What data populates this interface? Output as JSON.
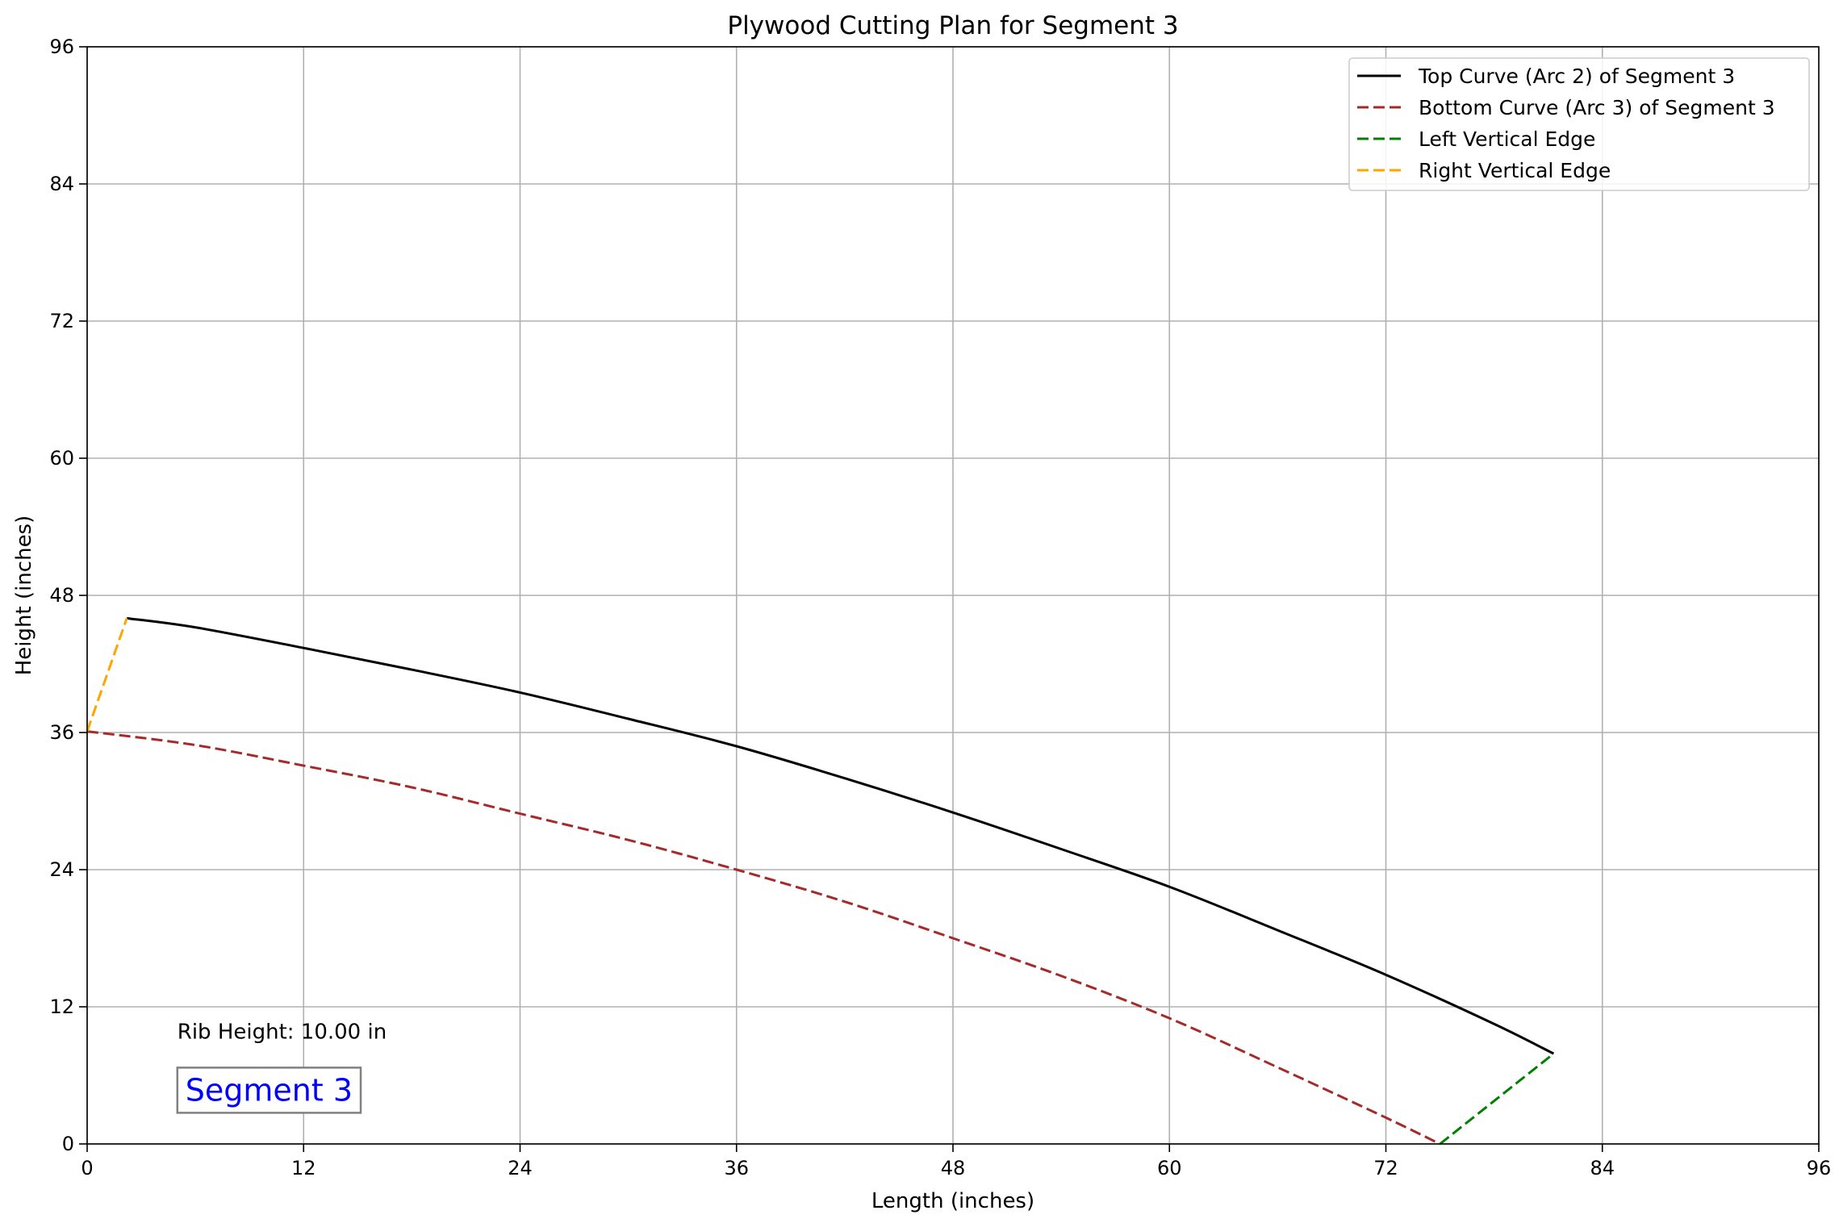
{
  "chart_data": {
    "type": "line",
    "title": "Plywood Cutting Plan for Segment 3",
    "xlabel": "Length (inches)",
    "ylabel": "Height (inches)",
    "xlim": [
      0,
      96
    ],
    "ylim": [
      0,
      96
    ],
    "xticks": [
      0,
      12,
      24,
      36,
      48,
      60,
      72,
      84,
      96
    ],
    "yticks": [
      0,
      12,
      24,
      36,
      48,
      60,
      72,
      84,
      96
    ],
    "grid": true,
    "legend_position": "top-right",
    "series": [
      {
        "name": "Top Curve (Arc 2) of Segment 3",
        "color": "#000000",
        "dash": "solid",
        "points": [
          [
            2.2,
            46.0
          ],
          [
            6,
            45.2
          ],
          [
            12,
            43.4
          ],
          [
            18,
            41.5
          ],
          [
            24,
            39.5
          ],
          [
            30,
            37.2
          ],
          [
            36,
            34.8
          ],
          [
            42,
            32.0
          ],
          [
            48,
            29.0
          ],
          [
            54,
            25.8
          ],
          [
            60,
            22.5
          ],
          [
            66,
            18.7
          ],
          [
            72,
            14.8
          ],
          [
            78,
            10.5
          ],
          [
            81.3,
            7.9
          ]
        ]
      },
      {
        "name": "Bottom Curve (Arc 3) of Segment 3",
        "color": "#a52a2a",
        "dash": "dashed",
        "points": [
          [
            0,
            36.1
          ],
          [
            6,
            34.9
          ],
          [
            12,
            33.1
          ],
          [
            18,
            31.2
          ],
          [
            24,
            28.9
          ],
          [
            30,
            26.6
          ],
          [
            36,
            24.0
          ],
          [
            42,
            21.2
          ],
          [
            48,
            18.0
          ],
          [
            54,
            14.7
          ],
          [
            60,
            11.0
          ],
          [
            66,
            6.7
          ],
          [
            72,
            2.3
          ],
          [
            75.0,
            0.0
          ]
        ]
      },
      {
        "name": "Left Vertical Edge",
        "color": "#008000",
        "dash": "dashed",
        "points": [
          [
            75.0,
            0.0
          ],
          [
            81.3,
            7.9
          ]
        ]
      },
      {
        "name": "Right Vertical Edge",
        "color": "#ffa500",
        "dash": "dashed",
        "points": [
          [
            0,
            36.1
          ],
          [
            2.2,
            46.0
          ]
        ]
      }
    ],
    "annotations": [
      {
        "text": "Rib Height: 10.00 in",
        "x": 5.0,
        "y": 9.2
      },
      {
        "text": "Segment 3",
        "x": 5.0,
        "y": 4.7,
        "color": "#0000ff",
        "boxed": true
      }
    ]
  }
}
